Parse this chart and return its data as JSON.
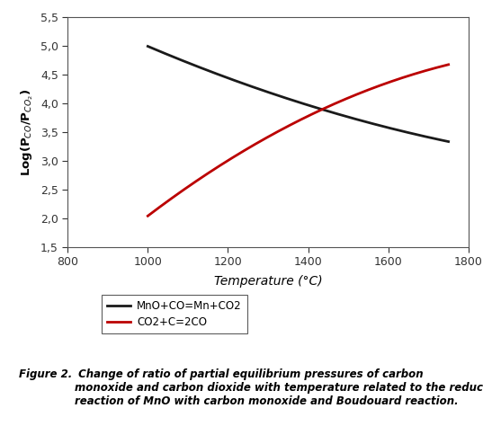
{
  "xlim": [
    800,
    1800
  ],
  "ylim": [
    1.5,
    5.5
  ],
  "xticks": [
    800,
    1000,
    1200,
    1400,
    1600,
    1800
  ],
  "yticks": [
    1.5,
    2.0,
    2.5,
    3.0,
    3.5,
    4.0,
    4.5,
    5.0,
    5.5
  ],
  "ytick_labels": [
    "1,5",
    "2,0",
    "2,5",
    "3,0",
    "3,5",
    "4,0",
    "4,5",
    "5,0",
    "5,5"
  ],
  "xtick_labels": [
    "800",
    "1000",
    "1200",
    "1400",
    "1600",
    "1800"
  ],
  "line1_color": "#1a1a1a",
  "line2_color": "#bb0000",
  "line1_label": "MnO+CO=Mn+CO2",
  "line2_label": "CO2+C=2CO",
  "line1_x": [
    1000,
    1100,
    1200,
    1300,
    1400,
    1500,
    1600,
    1700,
    1750
  ],
  "line1_y": [
    4.93,
    4.72,
    4.52,
    4.3,
    3.87,
    3.68,
    3.57,
    3.42,
    3.37
  ],
  "line2_x": [
    1000,
    1100,
    1200,
    1300,
    1400,
    1500,
    1600,
    1700,
    1750
  ],
  "line2_y": [
    2.11,
    2.5,
    2.92,
    3.4,
    3.84,
    4.14,
    4.37,
    4.57,
    4.65
  ],
  "xlabel": "Temperature (°C)",
  "ylabel": "Log(P$_{CO}$/P$_{CO_2}$)",
  "caption_bold": "Figure 2.",
  "caption_rest": " Change of ratio of partial equilibrium pressures of carbon\nmonoxide and carbon dioxide with temperature related to the reduction\nreaction of MnO with carbon monoxide and Boudouard reaction.",
  "background_color": "#ffffff"
}
